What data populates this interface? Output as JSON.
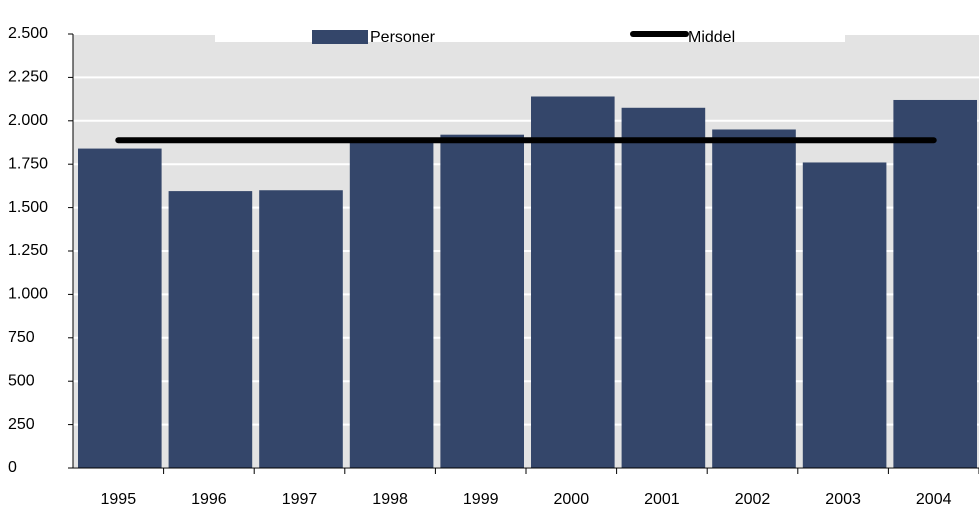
{
  "chart_data": {
    "type": "bar",
    "categories": [
      "1995",
      "1996",
      "1997",
      "1998",
      "1999",
      "2000",
      "2001",
      "2002",
      "2003",
      "2004"
    ],
    "series": [
      {
        "name": "Personer",
        "type": "bar",
        "color": "#34466a",
        "values": [
          1840,
          1595,
          1600,
          1880,
          1920,
          2140,
          2075,
          1950,
          1760,
          2120
        ]
      },
      {
        "name": "Middel",
        "type": "line",
        "color": "#000000",
        "values": [
          1888,
          1888,
          1888,
          1888,
          1888,
          1888,
          1888,
          1888,
          1888,
          1888
        ]
      }
    ],
    "ylim": [
      0,
      2500
    ],
    "yticks": [
      0,
      250,
      500,
      750,
      {
        "value": 1000,
        "label": "1.000"
      },
      {
        "value": 1250,
        "label": "1.250"
      },
      {
        "value": 1500,
        "label": "1.500"
      },
      {
        "value": 1750,
        "label": "1.750"
      },
      {
        "value": 2000,
        "label": "2.000"
      },
      {
        "value": 2250,
        "label": "2.250"
      },
      {
        "value": 2500,
        "label": "2.500"
      }
    ],
    "grid": true,
    "legend": "top"
  }
}
